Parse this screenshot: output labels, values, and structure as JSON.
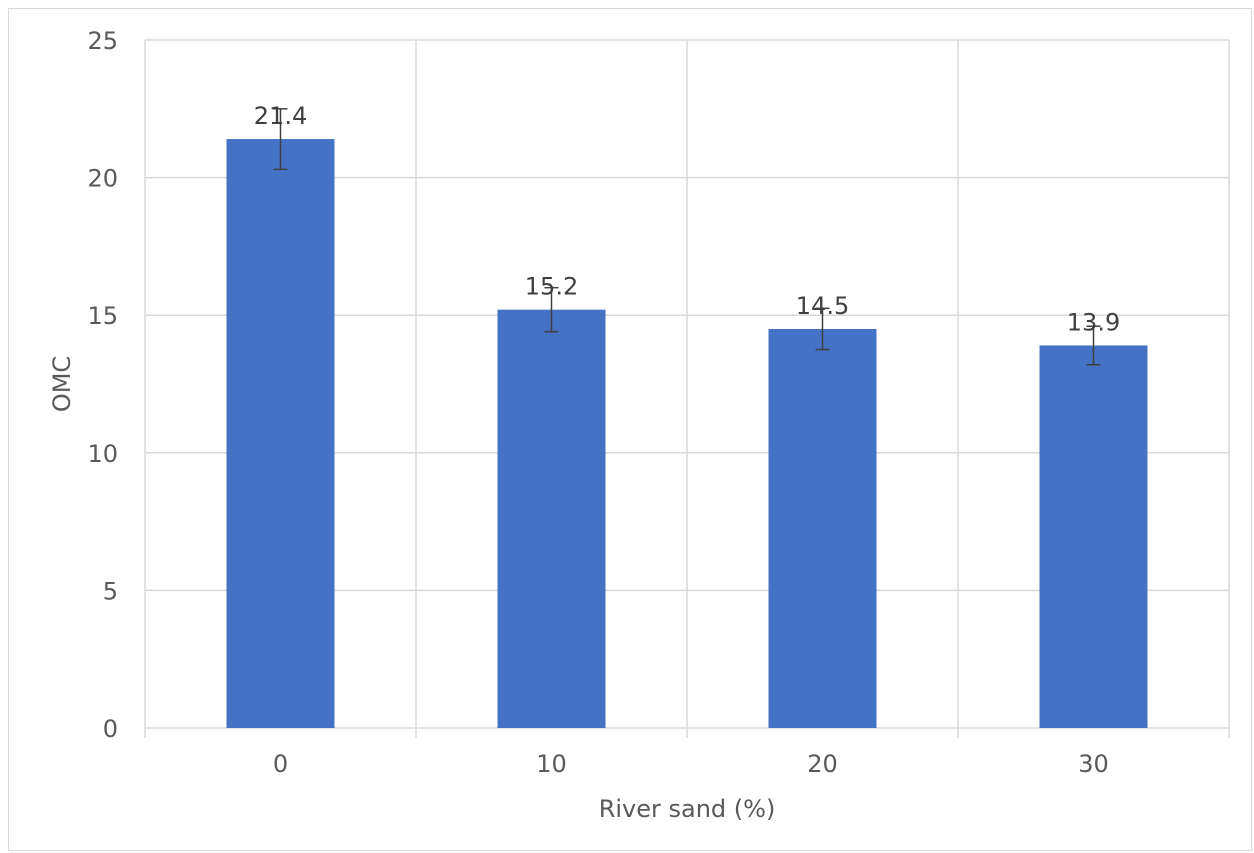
{
  "chart_data": {
    "type": "bar",
    "categories": [
      "0",
      "10",
      "20",
      "30"
    ],
    "values": [
      21.4,
      15.2,
      14.5,
      13.9
    ],
    "error": [
      1.1,
      0.8,
      0.75,
      0.7
    ],
    "data_labels": [
      "21.4",
      "15.2",
      "14.5",
      "13.9"
    ],
    "xlabel": "River sand (%)",
    "ylabel": "OMC",
    "ylim": [
      0,
      25
    ],
    "yticks": [
      0,
      5,
      10,
      15,
      20,
      25
    ],
    "grid": true,
    "legend": "none",
    "colors": {
      "bar": "#4472C4",
      "error_bar": "#404040",
      "grid": "#d9d9d9",
      "text": "#595959"
    }
  }
}
